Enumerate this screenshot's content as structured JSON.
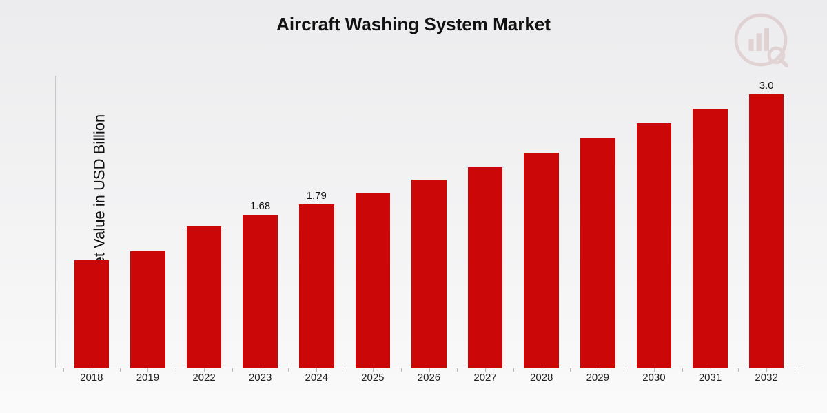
{
  "chart": {
    "type": "bar",
    "title": "Aircraft Washing System Market",
    "title_fontsize": 26,
    "ylabel": "Market Value in USD Billion",
    "ylabel_fontsize": 22,
    "categories": [
      "2018",
      "2019",
      "2022",
      "2023",
      "2024",
      "2025",
      "2026",
      "2027",
      "2028",
      "2029",
      "2030",
      "2031",
      "2032"
    ],
    "values": [
      1.18,
      1.28,
      1.55,
      1.68,
      1.79,
      1.92,
      2.06,
      2.2,
      2.36,
      2.52,
      2.68,
      2.84,
      3.0
    ],
    "labeled_values": {
      "2023": "1.68",
      "2024": "1.79",
      "2032": "3.0"
    },
    "ylim": [
      0,
      3.2
    ],
    "bar_color": "#cc0707",
    "bar_width": 0.62,
    "background_gradient": [
      "#ececee",
      "#fafafa"
    ],
    "axis_color": "#b8b8bc",
    "text_color": "#111111",
    "xlabel_fontsize": 15,
    "value_label_fontsize": 15
  }
}
